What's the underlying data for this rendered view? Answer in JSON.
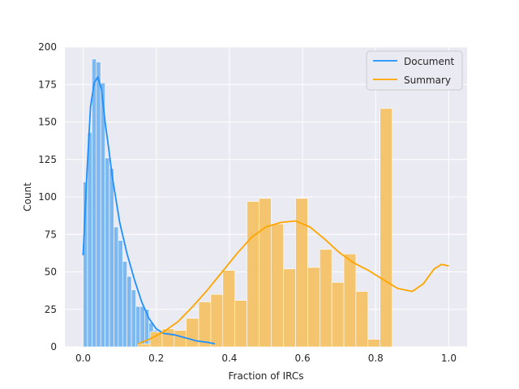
{
  "chart_data": {
    "type": "histogram",
    "xlabel": "Fraction of IRCs",
    "ylabel": "Count",
    "xlim": [
      -0.05,
      1.05
    ],
    "ylim": [
      0,
      200
    ],
    "xticks": [
      0.0,
      0.2,
      0.4,
      0.6,
      0.8,
      1.0
    ],
    "xtick_labels": [
      "0.0",
      "0.2",
      "0.4",
      "0.6",
      "0.8",
      "1.0"
    ],
    "yticks": [
      0,
      25,
      50,
      75,
      100,
      125,
      150,
      175,
      200
    ],
    "ytick_labels": [
      "0",
      "25",
      "50",
      "75",
      "100",
      "125",
      "150",
      "175",
      "200"
    ],
    "grid": true,
    "background": "#eaeaf2",
    "legend_position": "top-right",
    "series": [
      {
        "name": "Document",
        "color": "#1e90ff",
        "bar_color": "#7eb8f0",
        "bins": [
          [
            0.0,
            0.012,
            110
          ],
          [
            0.012,
            0.024,
            143
          ],
          [
            0.024,
            0.036,
            192
          ],
          [
            0.036,
            0.048,
            190
          ],
          [
            0.048,
            0.06,
            176
          ],
          [
            0.06,
            0.072,
            126
          ],
          [
            0.072,
            0.084,
            119
          ],
          [
            0.084,
            0.096,
            80
          ],
          [
            0.096,
            0.108,
            71
          ],
          [
            0.108,
            0.12,
            57
          ],
          [
            0.12,
            0.132,
            47
          ],
          [
            0.132,
            0.144,
            38
          ],
          [
            0.144,
            0.156,
            27
          ],
          [
            0.156,
            0.168,
            27
          ],
          [
            0.168,
            0.18,
            25
          ],
          [
            0.18,
            0.192,
            16
          ],
          [
            0.192,
            0.204,
            11
          ],
          [
            0.204,
            0.216,
            10
          ],
          [
            0.216,
            0.228,
            7
          ],
          [
            0.228,
            0.24,
            6
          ],
          [
            0.24,
            0.252,
            4
          ],
          [
            0.252,
            0.264,
            3
          ],
          [
            0.264,
            0.276,
            3
          ],
          [
            0.276,
            0.288,
            2
          ],
          [
            0.288,
            0.3,
            2
          ],
          [
            0.3,
            0.312,
            1
          ],
          [
            0.312,
            0.324,
            1
          ],
          [
            0.324,
            0.336,
            1
          ],
          [
            0.336,
            0.348,
            1
          ],
          [
            0.348,
            0.36,
            1
          ]
        ],
        "kde": [
          [
            0.0,
            61
          ],
          [
            0.01,
            115
          ],
          [
            0.02,
            160
          ],
          [
            0.03,
            176
          ],
          [
            0.04,
            180
          ],
          [
            0.05,
            172
          ],
          [
            0.06,
            150
          ],
          [
            0.07,
            132
          ],
          [
            0.08,
            113
          ],
          [
            0.09,
            98
          ],
          [
            0.1,
            83
          ],
          [
            0.12,
            62
          ],
          [
            0.14,
            45
          ],
          [
            0.16,
            30
          ],
          [
            0.18,
            19
          ],
          [
            0.2,
            12
          ],
          [
            0.22,
            9
          ],
          [
            0.25,
            8
          ],
          [
            0.28,
            6
          ],
          [
            0.31,
            4
          ],
          [
            0.34,
            3
          ],
          [
            0.36,
            2
          ]
        ]
      },
      {
        "name": "Summary",
        "color": "#ffa500",
        "bar_color": "#f5c46e",
        "bins": [
          [
            0.15,
            0.183,
            2
          ],
          [
            0.183,
            0.216,
            10
          ],
          [
            0.216,
            0.249,
            12
          ],
          [
            0.249,
            0.282,
            11
          ],
          [
            0.282,
            0.316,
            19
          ],
          [
            0.316,
            0.349,
            30
          ],
          [
            0.349,
            0.382,
            35
          ],
          [
            0.382,
            0.415,
            51
          ],
          [
            0.415,
            0.448,
            31
          ],
          [
            0.448,
            0.481,
            97
          ],
          [
            0.481,
            0.514,
            99
          ],
          [
            0.514,
            0.548,
            82
          ],
          [
            0.548,
            0.581,
            52
          ],
          [
            0.581,
            0.614,
            99
          ],
          [
            0.614,
            0.647,
            53
          ],
          [
            0.647,
            0.68,
            65
          ],
          [
            0.68,
            0.713,
            43
          ],
          [
            0.713,
            0.746,
            62
          ],
          [
            0.746,
            0.779,
            37
          ],
          [
            0.779,
            0.812,
            5
          ],
          [
            0.812,
            0.845,
            159
          ]
        ],
        "kde": [
          [
            0.15,
            2
          ],
          [
            0.18,
            5
          ],
          [
            0.22,
            10
          ],
          [
            0.26,
            17
          ],
          [
            0.3,
            27
          ],
          [
            0.34,
            38
          ],
          [
            0.38,
            50
          ],
          [
            0.42,
            62
          ],
          [
            0.46,
            73
          ],
          [
            0.5,
            80
          ],
          [
            0.54,
            83
          ],
          [
            0.58,
            84
          ],
          [
            0.62,
            80
          ],
          [
            0.66,
            72
          ],
          [
            0.7,
            63
          ],
          [
            0.74,
            56
          ],
          [
            0.78,
            51
          ],
          [
            0.82,
            45
          ],
          [
            0.86,
            39
          ],
          [
            0.9,
            37
          ],
          [
            0.93,
            42
          ],
          [
            0.96,
            52
          ],
          [
            0.98,
            55
          ],
          [
            1.0,
            54
          ]
        ]
      }
    ]
  }
}
